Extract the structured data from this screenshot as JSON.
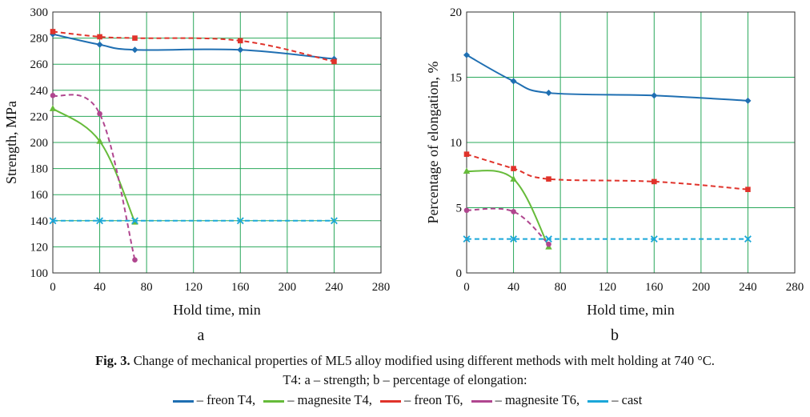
{
  "chart_data": [
    {
      "type": "line",
      "panel_label": "a",
      "xlabel": "Hold time, min",
      "ylabel": "Strength, MPa",
      "xlim": [
        0,
        280
      ],
      "ylim": [
        100,
        300
      ],
      "xticks": [
        0,
        40,
        80,
        120,
        160,
        200,
        240,
        280
      ],
      "yticks": [
        100,
        120,
        140,
        160,
        180,
        200,
        220,
        240,
        260,
        280,
        300
      ],
      "grid": true,
      "series": [
        {
          "name": "freon T4",
          "color": "#1f6fb2",
          "style": "solid",
          "marker": "diamond",
          "x": [
            0,
            40,
            70,
            160,
            240
          ],
          "y": [
            283,
            275,
            271,
            271,
            264
          ]
        },
        {
          "name": "magnesite T4",
          "color": "#66bb3a",
          "style": "solid",
          "marker": "triangle",
          "x": [
            0,
            40,
            70
          ],
          "y": [
            226,
            201,
            139
          ]
        },
        {
          "name": "freon T6",
          "color": "#e0332b",
          "style": "dashed",
          "marker": "square",
          "x": [
            0,
            40,
            70,
            160,
            240
          ],
          "y": [
            285,
            281,
            280,
            278,
            262
          ]
        },
        {
          "name": "magnesite T6",
          "color": "#b0468f",
          "style": "dashed",
          "marker": "circle",
          "x": [
            0,
            40,
            70
          ],
          "y": [
            236,
            222,
            110
          ]
        },
        {
          "name": "cast",
          "color": "#1aa7d9",
          "style": "dashed",
          "marker": "x",
          "x": [
            0,
            40,
            70,
            160,
            240
          ],
          "y": [
            140,
            140,
            140,
            140,
            140
          ]
        }
      ]
    },
    {
      "type": "line",
      "panel_label": "b",
      "xlabel": "Hold time, min",
      "ylabel": "Percentage of elongation, %",
      "xlim": [
        0,
        280
      ],
      "ylim": [
        0,
        20
      ],
      "xticks": [
        0,
        40,
        80,
        120,
        160,
        200,
        240,
        280
      ],
      "yticks": [
        0,
        5,
        10,
        15,
        20
      ],
      "grid": true,
      "series": [
        {
          "name": "freon T4",
          "color": "#1f6fb2",
          "style": "solid",
          "marker": "diamond",
          "x": [
            0,
            40,
            70,
            160,
            240
          ],
          "y": [
            16.7,
            14.7,
            13.8,
            13.6,
            13.2
          ]
        },
        {
          "name": "magnesite T4",
          "color": "#66bb3a",
          "style": "solid",
          "marker": "triangle",
          "x": [
            0,
            40,
            70
          ],
          "y": [
            7.8,
            7.2,
            2.0
          ]
        },
        {
          "name": "freon T6",
          "color": "#e0332b",
          "style": "dashed",
          "marker": "square",
          "x": [
            0,
            40,
            70,
            160,
            240
          ],
          "y": [
            9.1,
            8.0,
            7.2,
            7.0,
            6.4
          ]
        },
        {
          "name": "magnesite T6",
          "color": "#b0468f",
          "style": "dashed",
          "marker": "circle",
          "x": [
            0,
            40,
            70
          ],
          "y": [
            4.8,
            4.7,
            2.2
          ]
        },
        {
          "name": "cast",
          "color": "#1aa7d9",
          "style": "dashed",
          "marker": "x",
          "x": [
            0,
            40,
            70,
            160,
            240
          ],
          "y": [
            2.6,
            2.6,
            2.6,
            2.6,
            2.6
          ]
        }
      ]
    }
  ],
  "caption": {
    "fig_label": "Fig. 3.",
    "line1": " Change of mechanical properties of ML5 alloy modified using different methods with melt holding at 740 °C.",
    "line2": "T4: a – strength; b – percentage of elongation:"
  },
  "legend": [
    {
      "text": "– freon T4,",
      "color": "#1f6fb2"
    },
    {
      "text": "– magnesite T4,",
      "color": "#66bb3a"
    },
    {
      "text": "– freon T6,",
      "color": "#e0332b"
    },
    {
      "text": "– magnesite T6,",
      "color": "#b0468f"
    },
    {
      "text": "– cast",
      "color": "#1aa7d9"
    }
  ]
}
